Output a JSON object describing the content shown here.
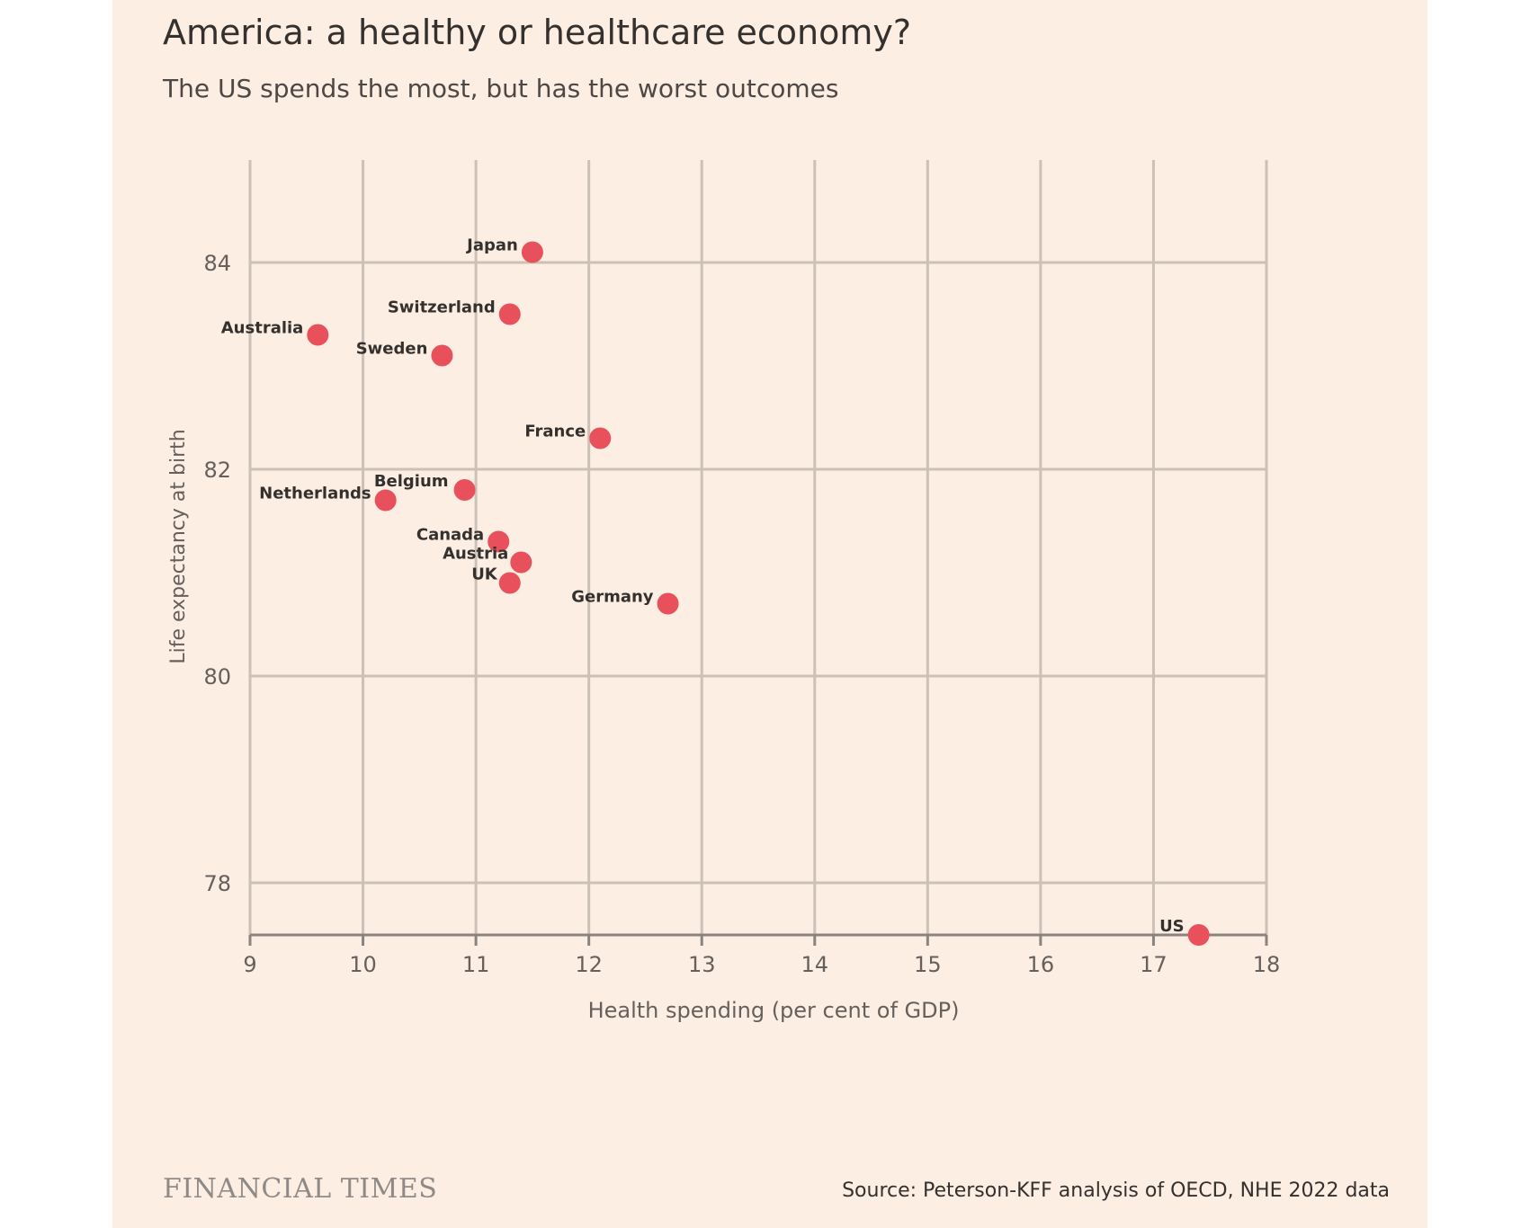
{
  "title": "America: a healthy or healthcare economy?",
  "subtitle": "The US spends the most, but has the worst outcomes",
  "brand": "FINANCIAL TIMES",
  "source": "Source: Peterson-KFF analysis of OECD, NHE 2022 data",
  "colors": {
    "background": "#fdeee4",
    "grid": "#ccc1b7",
    "marker": "#e8505b",
    "text": "#33302e",
    "axis_text": "#66605c"
  },
  "chart_data": {
    "type": "scatter",
    "title": "America: a healthy or healthcare economy?",
    "subtitle": "The US spends the most, but has the worst outcomes",
    "xlabel": "Health spending (per cent of GDP)",
    "ylabel": "Life expectancy at birth",
    "xlim": [
      9,
      18
    ],
    "ylim": [
      77.5,
      85
    ],
    "xticks": [
      9,
      10,
      11,
      12,
      13,
      14,
      15,
      16,
      17,
      18
    ],
    "yticks": [
      78,
      80,
      82,
      84
    ],
    "grid": true,
    "points": [
      {
        "label": "Japan",
        "x": 11.5,
        "y": 84.1
      },
      {
        "label": "Switzerland",
        "x": 11.3,
        "y": 83.5
      },
      {
        "label": "Australia",
        "x": 9.6,
        "y": 83.3
      },
      {
        "label": "Sweden",
        "x": 10.7,
        "y": 83.1
      },
      {
        "label": "France",
        "x": 12.1,
        "y": 82.3
      },
      {
        "label": "Belgium",
        "x": 10.9,
        "y": 81.8
      },
      {
        "label": "Netherlands",
        "x": 10.2,
        "y": 81.7
      },
      {
        "label": "Canada",
        "x": 11.2,
        "y": 81.3
      },
      {
        "label": "Austria",
        "x": 11.4,
        "y": 81.1
      },
      {
        "label": "UK",
        "x": 11.3,
        "y": 80.9
      },
      {
        "label": "Germany",
        "x": 12.7,
        "y": 80.7
      },
      {
        "label": "US",
        "x": 17.4,
        "y": 77.5
      }
    ]
  }
}
